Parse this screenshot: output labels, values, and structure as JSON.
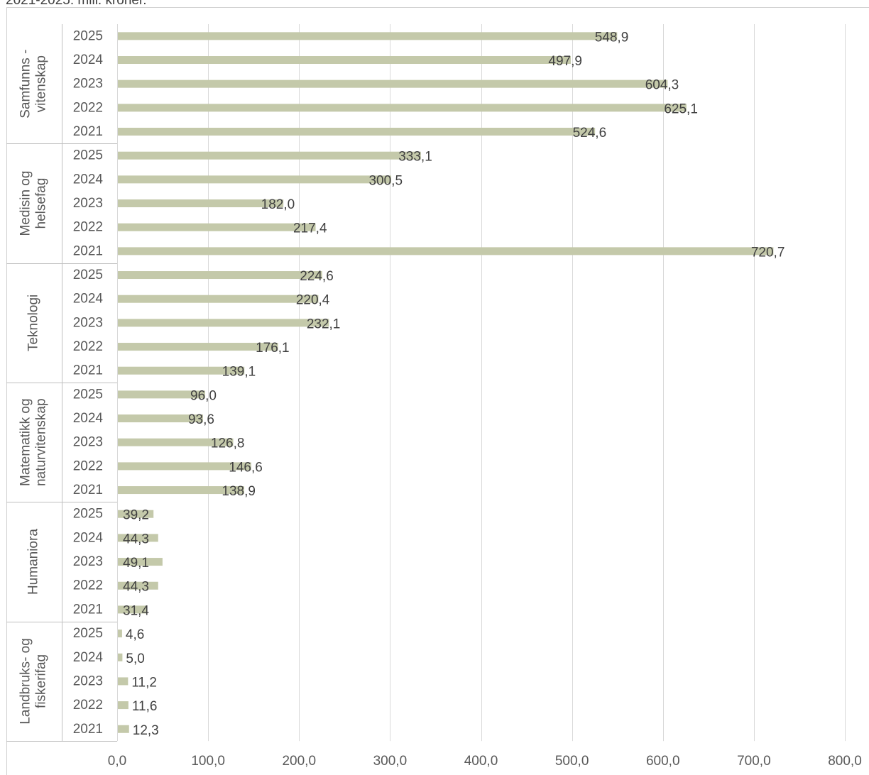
{
  "caption": "2021-2025. mill. kroner.",
  "chart_data": {
    "type": "bar",
    "orientation": "horizontal",
    "xlim": [
      0,
      800
    ],
    "x_ticks": [
      "0,0",
      "100,0",
      "200,0",
      "300,0",
      "400,0",
      "500,0",
      "600,0",
      "700,0",
      "800,0"
    ],
    "grid": true,
    "bar_color": "#c4c9aa",
    "decimal_separator": ",",
    "groups": [
      {
        "label": [
          "Samfunns -",
          "vitenskap"
        ],
        "bars": [
          {
            "year": "2025",
            "value": 548.9
          },
          {
            "year": "2024",
            "value": 497.9
          },
          {
            "year": "2023",
            "value": 604.3
          },
          {
            "year": "2022",
            "value": 625.1
          },
          {
            "year": "2021",
            "value": 524.6
          }
        ]
      },
      {
        "label": [
          "Medisin og",
          "helsefag"
        ],
        "bars": [
          {
            "year": "2025",
            "value": 333.1
          },
          {
            "year": "2024",
            "value": 300.5
          },
          {
            "year": "2023",
            "value": 182.0
          },
          {
            "year": "2022",
            "value": 217.4
          },
          {
            "year": "2021",
            "value": 720.7
          }
        ]
      },
      {
        "label": [
          "Teknologi"
        ],
        "bars": [
          {
            "year": "2025",
            "value": 224.6
          },
          {
            "year": "2024",
            "value": 220.4
          },
          {
            "year": "2023",
            "value": 232.1
          },
          {
            "year": "2022",
            "value": 176.1
          },
          {
            "year": "2021",
            "value": 139.1
          }
        ]
      },
      {
        "label": [
          "Matematikk og",
          "naturvitenskap"
        ],
        "bars": [
          {
            "year": "2025",
            "value": 96.0
          },
          {
            "year": "2024",
            "value": 93.6
          },
          {
            "year": "2023",
            "value": 126.8
          },
          {
            "year": "2022",
            "value": 146.6
          },
          {
            "year": "2021",
            "value": 138.9
          }
        ]
      },
      {
        "label": [
          "Humaniora"
        ],
        "bars": [
          {
            "year": "2025",
            "value": 39.2
          },
          {
            "year": "2024",
            "value": 44.3
          },
          {
            "year": "2023",
            "value": 49.1
          },
          {
            "year": "2022",
            "value": 44.3
          },
          {
            "year": "2021",
            "value": 31.4
          }
        ]
      },
      {
        "label": [
          "Landbruks- og",
          "fiskerifag"
        ],
        "bars": [
          {
            "year": "2025",
            "value": 4.6
          },
          {
            "year": "2024",
            "value": 5.0
          },
          {
            "year": "2023",
            "value": 11.2
          },
          {
            "year": "2022",
            "value": 11.6
          },
          {
            "year": "2021",
            "value": 12.3
          }
        ]
      }
    ]
  }
}
